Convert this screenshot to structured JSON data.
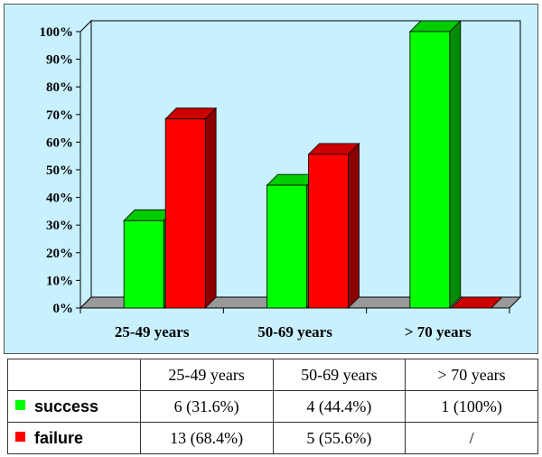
{
  "chart_data": {
    "type": "bar",
    "title": "",
    "xlabel": "",
    "ylabel": "",
    "categories": [
      "25-49 years",
      "50-69 years",
      "> 70 years"
    ],
    "series": [
      {
        "name": "success",
        "values": [
          31.6,
          44.4,
          100
        ]
      },
      {
        "name": "failure",
        "values": [
          68.4,
          55.6,
          0
        ]
      }
    ],
    "ylim": [
      0,
      100
    ],
    "y_ticks": [
      "0%",
      "10%",
      "20%",
      "30%",
      "40%",
      "50%",
      "60%",
      "70%",
      "80%",
      "90%",
      "100%"
    ],
    "style": "3d-clustered",
    "grid": false,
    "colors": {
      "success": "#00ff00",
      "failure": "#ff0000",
      "background": "#c8f0ff",
      "floor": "#999999"
    }
  },
  "table": {
    "header": [
      "",
      "25-49 years",
      "50-69 years",
      "> 70 years"
    ],
    "rows": [
      {
        "label": "success",
        "cells": [
          "6 (31.6%)",
          "4 (44.4%)",
          "1 (100%)"
        ]
      },
      {
        "label": "failure",
        "cells": [
          "13 (68.4%)",
          "5 (55.6%)",
          "/"
        ]
      }
    ]
  }
}
